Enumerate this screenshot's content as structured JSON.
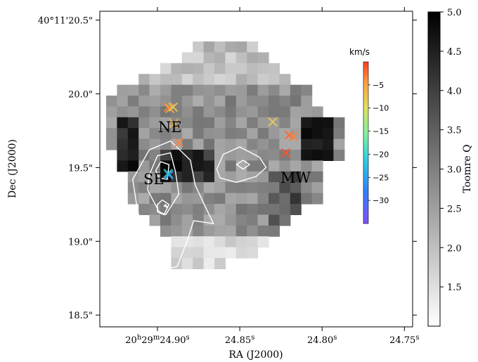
{
  "chart_data": {
    "type": "heatmap",
    "title": "",
    "xlabel": "RA (J2000)",
    "ylabel": "Dec (J2000)",
    "x_ticks": [
      {
        "value": 24.9,
        "label": "20h29m24.90s"
      },
      {
        "value": 24.85,
        "label": "24.85s"
      },
      {
        "value": 24.8,
        "label": "24.80s"
      },
      {
        "value": 24.75,
        "label": "24.75s"
      }
    ],
    "x_tick_parts": [
      [
        "20",
        "h",
        "29",
        "m",
        "24.90",
        "s"
      ],
      [
        "24.85",
        "s"
      ],
      [
        "24.80",
        "s"
      ],
      [
        "24.75",
        "s"
      ]
    ],
    "y_ticks": [
      {
        "value": 20.5,
        "label": "40°11'20.5\""
      },
      {
        "value": 20.0,
        "label": "20.0\""
      },
      {
        "value": 19.5,
        "label": "19.5\""
      },
      {
        "value": 19.0,
        "label": "19.0\""
      },
      {
        "value": 18.5,
        "label": "18.5\""
      }
    ],
    "x_range": [
      24.935,
      24.745
    ],
    "y_range": [
      18.42,
      20.56
    ],
    "colorbar": {
      "label": "Toomre Q",
      "range": [
        1.0,
        5.0
      ],
      "ticks": [
        "1.5",
        "2.0",
        "2.5",
        "3.0",
        "3.5",
        "4.0",
        "4.5",
        "5.0"
      ],
      "colormap": "gray_r"
    },
    "velocity_colorbar": {
      "unit": "km/s",
      "range": [
        -35,
        0
      ],
      "ticks": [
        "-5",
        "-10",
        "-15",
        "-20",
        "-25",
        "-30"
      ],
      "colormap": "rainbow"
    },
    "region_labels": [
      "NE",
      "SE",
      "MW"
    ],
    "markers": [
      {
        "ra": 24.8935,
        "dec": 19.91,
        "v": -3
      },
      {
        "ra": 24.8925,
        "dec": 19.9,
        "v": -5
      },
      {
        "ra": 24.8905,
        "dec": 19.91,
        "v": -8
      },
      {
        "ra": 24.89,
        "dec": 19.8,
        "v": -6
      },
      {
        "ra": 24.887,
        "dec": 19.67,
        "v": -3
      },
      {
        "ra": 24.83,
        "dec": 19.81,
        "v": -8
      },
      {
        "ra": 24.82,
        "dec": 19.72,
        "v": -2
      },
      {
        "ra": 24.8175,
        "dec": 19.71,
        "v": -3
      },
      {
        "ra": 24.822,
        "dec": 19.6,
        "v": -1
      },
      {
        "ra": 24.8935,
        "dec": 19.46,
        "v": -20
      },
      {
        "ra": 24.893,
        "dec": 19.45,
        "v": -25
      }
    ],
    "contours": [
      [
        [
          24.915,
          19.42
        ],
        [
          24.905,
          19.62
        ],
        [
          24.892,
          19.68
        ],
        [
          24.88,
          19.55
        ],
        [
          24.877,
          19.38
        ],
        [
          24.872,
          19.26
        ],
        [
          24.866,
          19.12
        ],
        [
          24.878,
          19.14
        ],
        [
          24.882,
          19.0
        ],
        [
          24.888,
          18.83
        ],
        [
          24.895,
          18.81
        ],
        [
          24.905,
          18.98
        ],
        [
          24.912,
          19.2
        ],
        [
          24.915,
          19.42
        ]
      ],
      [
        [
          24.905,
          19.45
        ],
        [
          24.9,
          19.58
        ],
        [
          24.892,
          19.6
        ],
        [
          24.889,
          19.47
        ],
        [
          24.887,
          19.32
        ],
        [
          24.895,
          19.18
        ],
        [
          24.899,
          19.2
        ],
        [
          24.906,
          19.35
        ],
        [
          24.905,
          19.45
        ]
      ],
      [
        [
          24.901,
          19.48
        ],
        [
          24.898,
          19.54
        ],
        [
          24.893,
          19.52
        ],
        [
          24.894,
          19.42
        ],
        [
          24.899,
          19.43
        ],
        [
          24.901,
          19.48
        ]
      ],
      [
        [
          24.9,
          19.25
        ],
        [
          24.897,
          19.28
        ],
        [
          24.893,
          19.25
        ],
        [
          24.896,
          19.18
        ],
        [
          24.9,
          19.2
        ],
        [
          24.9,
          19.25
        ]
      ],
      [
        [
          24.896,
          19.24
        ],
        [
          24.895,
          19.25
        ],
        [
          24.894,
          19.23
        ],
        [
          24.896,
          19.24
        ]
      ],
      [
        [
          24.864,
          19.49
        ],
        [
          24.86,
          19.59
        ],
        [
          24.85,
          19.64
        ],
        [
          24.838,
          19.57
        ],
        [
          24.834,
          19.5
        ],
        [
          24.84,
          19.44
        ],
        [
          24.852,
          19.4
        ],
        [
          24.862,
          19.43
        ],
        [
          24.864,
          19.49
        ]
      ],
      [
        [
          24.852,
          19.52
        ],
        [
          24.848,
          19.55
        ],
        [
          24.844,
          19.52
        ],
        [
          24.848,
          19.49
        ],
        [
          24.852,
          19.52
        ]
      ]
    ]
  }
}
